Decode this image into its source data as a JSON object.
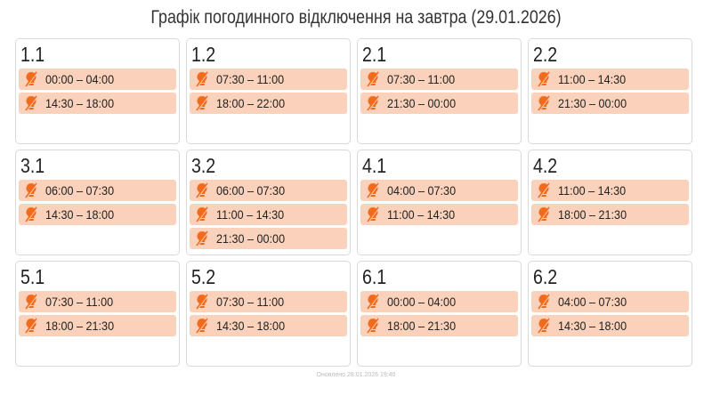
{
  "title": "Графік погодинного відключення на завтра (29.01.2026)",
  "colors": {
    "slot_bg": "#fad2bb",
    "icon": "#f26b1d"
  },
  "slot_icon": "lightbulb-off-icon",
  "groups": [
    {
      "name": "1.1",
      "slots": [
        "00:00 – 04:00",
        "14:30 – 18:00"
      ]
    },
    {
      "name": "1.2",
      "slots": [
        "07:30 – 11:00",
        "18:00 – 22:00"
      ]
    },
    {
      "name": "2.1",
      "slots": [
        "07:30 – 11:00",
        "21:30 – 00:00"
      ]
    },
    {
      "name": "2.2",
      "slots": [
        "11:00 – 14:30",
        "21:30 – 00:00"
      ]
    },
    {
      "name": "3.1",
      "slots": [
        "06:00 – 07:30",
        "14:30 – 18:00"
      ]
    },
    {
      "name": "3.2",
      "slots": [
        "06:00 – 07:30",
        "11:00 – 14:30",
        "21:30 – 00:00"
      ]
    },
    {
      "name": "4.1",
      "slots": [
        "04:00 – 07:30",
        "11:00 – 14:30"
      ]
    },
    {
      "name": "4.2",
      "slots": [
        "11:00 – 14:30",
        "18:00 – 21:30"
      ]
    },
    {
      "name": "5.1",
      "slots": [
        "07:30 – 11:00",
        "18:00 – 21:30"
      ]
    },
    {
      "name": "5.2",
      "slots": [
        "07:30 – 11:00",
        "14:30 – 18:00"
      ]
    },
    {
      "name": "6.1",
      "slots": [
        "00:00 – 04:00",
        "18:00 – 21:30"
      ]
    },
    {
      "name": "6.2",
      "slots": [
        "04:00 – 07:30",
        "14:30 – 18:00"
      ]
    }
  ],
  "footer": "Оновлено 28.01.2026 19:40"
}
